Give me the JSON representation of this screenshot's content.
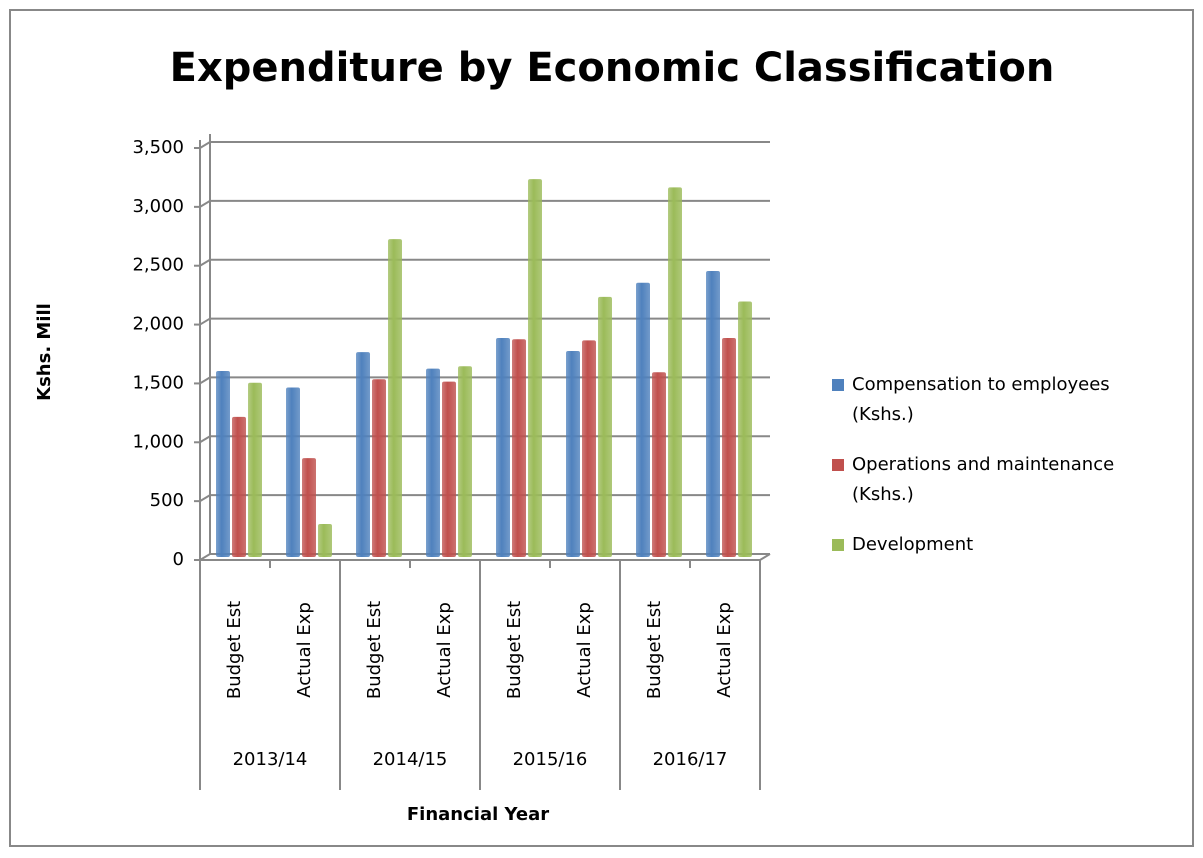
{
  "chart_data": {
    "type": "bar",
    "title": "Expenditure by Economic Classification",
    "y_label": "Kshs. Mill",
    "x_label": "Financial Year",
    "categories": [
      "Budget Est",
      "Actual Exp",
      "Budget Est",
      "Actual Exp",
      "Budget Est",
      "Actual Exp",
      "Budget Est",
      "Actual Exp"
    ],
    "groups": [
      "2013/14",
      "2014/15",
      "2015/16",
      "2016/17"
    ],
    "series": [
      {
        "name": "Compensation to employees (Kshs.)",
        "color": "#4f81bd",
        "values": [
          1580,
          1440,
          1740,
          1600,
          1860,
          1750,
          2330,
          2430
        ]
      },
      {
        "name": "Operations and maintenance (Kshs.)",
        "color": "#c0504d",
        "values": [
          1190,
          840,
          1510,
          1490,
          1850,
          1840,
          1570,
          1860
        ]
      },
      {
        "name": "Development",
        "color": "#9bbb59",
        "values": [
          1480,
          280,
          2700,
          1620,
          3210,
          2210,
          3140,
          2170
        ]
      }
    ],
    "ylim": [
      0,
      3500
    ],
    "yticks": [
      0,
      500,
      {
        "value": 1000,
        "label": "1,000"
      },
      {
        "value": 1500,
        "label": "1,500"
      },
      {
        "value": 2000,
        "label": "2,000"
      },
      {
        "value": 2500,
        "label": "2,500"
      },
      {
        "value": 3000,
        "label": "3,000"
      },
      {
        "value": 3500,
        "label": "3,500"
      }
    ],
    "grid": true,
    "legend": "right"
  }
}
